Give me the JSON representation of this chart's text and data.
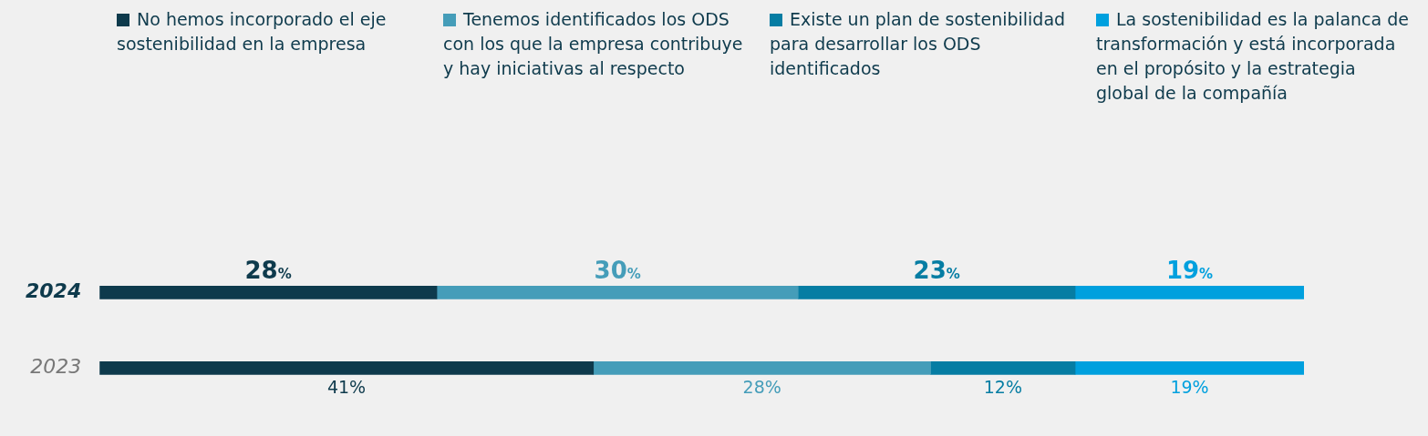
{
  "chart_data": {
    "type": "bar",
    "orientation": "horizontal",
    "stacked": true,
    "categories": [
      "2024",
      "2023"
    ],
    "series": [
      {
        "name": "No hemos incorporado el eje sostenibilidad en la empresa",
        "color": "#0e3a4c",
        "values": [
          28,
          41
        ],
        "value_labels": [
          "28%",
          "41%"
        ]
      },
      {
        "name": "Tenemos identificados los ODS con los que la empresa contribuye y hay iniciativas al respecto",
        "color": "#459db9",
        "values": [
          30,
          28
        ],
        "value_labels": [
          "30%",
          "28%"
        ]
      },
      {
        "name": "Existe un plan de sostenibilidad para desarrollar los ODS identificados",
        "color": "#067da3",
        "values": [
          23,
          12
        ],
        "value_labels": [
          "23%",
          "12%"
        ]
      },
      {
        "name": "La sostenibilidad es la palanca de transformación y está incorporada en el propósito y la estrategia global de la compañía",
        "color": "#00a0de",
        "values": [
          19,
          19
        ],
        "value_labels": [
          "19%",
          "19%"
        ]
      }
    ],
    "grid": false,
    "legend": "top"
  }
}
